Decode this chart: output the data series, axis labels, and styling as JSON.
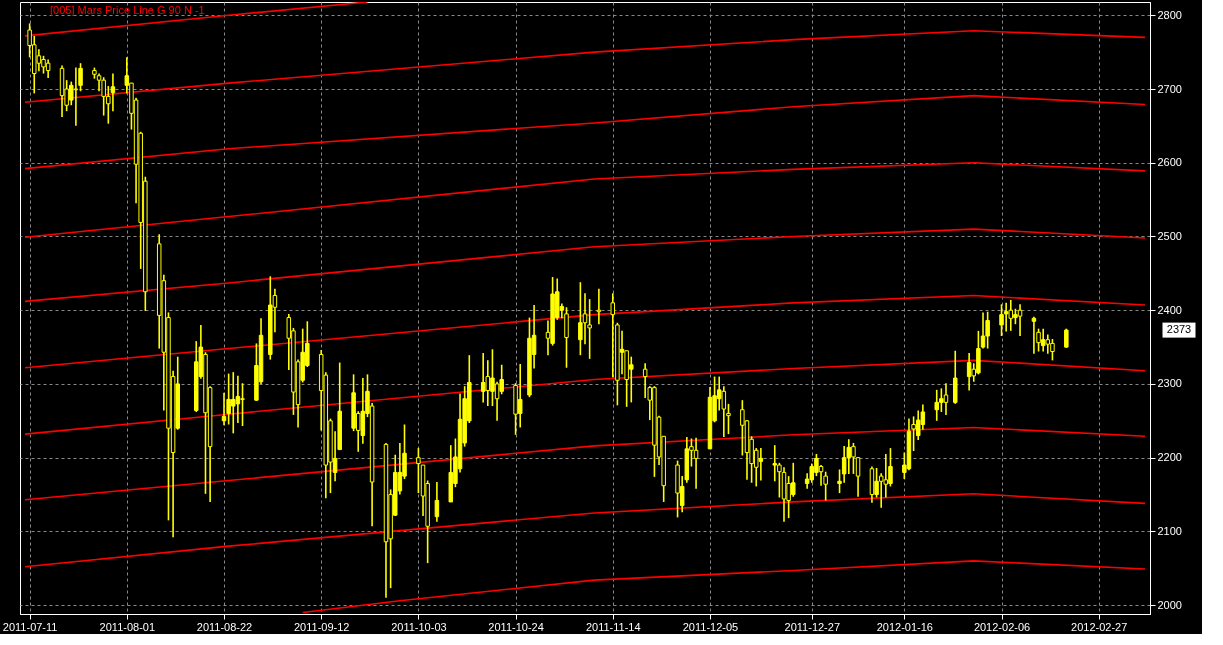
{
  "chart_data": {
    "type": "candlestick",
    "annotations": [
      "[005] Mars Price Line G 90 N -1",
      "2373"
    ],
    "xlim": [
      "2011-07-10",
      "2012-03-08"
    ],
    "xticks": [
      "2011-07-11",
      "2011-08-01",
      "2011-08-22",
      "2011-09-12",
      "2011-10-03",
      "2011-10-24",
      "2011-11-14",
      "2011-12-05",
      "2011-12-27",
      "2012-01-16",
      "2012-02-06",
      "2012-02-27"
    ],
    "ylim": [
      1988,
      2818
    ],
    "yticks": [
      2000,
      2100,
      2200,
      2300,
      2400,
      2500,
      2600,
      2700,
      2800
    ],
    "grid": true,
    "x": [
      "2011-07-11",
      "2011-07-12",
      "2011-07-13",
      "2011-07-14",
      "2011-07-15",
      "2011-07-18",
      "2011-07-19",
      "2011-07-20",
      "2011-07-21",
      "2011-07-22",
      "2011-07-25",
      "2011-07-26",
      "2011-07-27",
      "2011-07-28",
      "2011-07-29",
      "2011-08-01",
      "2011-08-02",
      "2011-08-03",
      "2011-08-04",
      "2011-08-05",
      "2011-08-08",
      "2011-08-09",
      "2011-08-10",
      "2011-08-11",
      "2011-08-12",
      "2011-08-16",
      "2011-08-17",
      "2011-08-18",
      "2011-08-19",
      "2011-08-22",
      "2011-08-23",
      "2011-08-24",
      "2011-08-25",
      "2011-08-26",
      "2011-08-29",
      "2011-08-30",
      "2011-09-01",
      "2011-09-02",
      "2011-09-05",
      "2011-09-06",
      "2011-09-07",
      "2011-09-08",
      "2011-09-09",
      "2011-09-12",
      "2011-09-13",
      "2011-09-14",
      "2011-09-15",
      "2011-09-16",
      "2011-09-19",
      "2011-09-20",
      "2011-09-21",
      "2011-09-22",
      "2011-09-23",
      "2011-09-26",
      "2011-09-27",
      "2011-09-28",
      "2011-09-29",
      "2011-09-30",
      "2011-10-03",
      "2011-10-04",
      "2011-10-05",
      "2011-10-07",
      "2011-10-10",
      "2011-10-11",
      "2011-10-12",
      "2011-10-13",
      "2011-10-14",
      "2011-10-17",
      "2011-10-18",
      "2011-10-19",
      "2011-10-20",
      "2011-10-21",
      "2011-10-24",
      "2011-10-25",
      "2011-10-27",
      "2011-10-28",
      "2011-10-31",
      "2011-11-01",
      "2011-11-02",
      "2011-11-03",
      "2011-11-04",
      "2011-11-07",
      "2011-11-08",
      "2011-11-09",
      "2011-11-11",
      "2011-11-14",
      "2011-11-15",
      "2011-11-16",
      "2011-11-17",
      "2011-11-18",
      "2011-11-21",
      "2011-11-22",
      "2011-11-23",
      "2011-11-24",
      "2011-11-25",
      "2011-11-28",
      "2011-11-29",
      "2011-11-30",
      "2011-12-01",
      "2011-12-02",
      "2011-12-05",
      "2011-12-06",
      "2011-12-07",
      "2011-12-08",
      "2011-12-09",
      "2011-12-12",
      "2011-12-13",
      "2011-12-14",
      "2011-12-15",
      "2011-12-16",
      "2011-12-19",
      "2011-12-20",
      "2011-12-21",
      "2011-12-22",
      "2011-12-23",
      "2011-12-26",
      "2011-12-27",
      "2011-12-28",
      "2011-12-29",
      "2011-12-30",
      "2012-01-02",
      "2012-01-03",
      "2012-01-04",
      "2012-01-05",
      "2012-01-06",
      "2012-01-09",
      "2012-01-10",
      "2012-01-11",
      "2012-01-12",
      "2012-01-13",
      "2012-01-16",
      "2012-01-17",
      "2012-01-18",
      "2012-01-19",
      "2012-01-20",
      "2012-01-23",
      "2012-01-24",
      "2012-01-25",
      "2012-01-27",
      "2012-01-30",
      "2012-01-31",
      "2012-02-01",
      "2012-02-02",
      "2012-02-03",
      "2012-02-06",
      "2012-02-07",
      "2012-02-08",
      "2012-02-09",
      "2012-02-10",
      "2012-02-13",
      "2012-02-14",
      "2012-02-15",
      "2012-02-16",
      "2012-02-17",
      "2012-02-20"
    ],
    "series": [
      {
        "type": "line",
        "color": "#ff0000",
        "x": [
          "2011-07-10",
          "2011-08-23",
          "2011-09-22"
        ],
        "values": [
          2772,
          2800,
          2818
        ]
      },
      {
        "type": "line",
        "color": "#ff0000",
        "x": [
          "2011-07-10",
          "2011-08-23",
          "2011-11-10",
          "2011-12-23",
          "2012-01-31",
          "2012-03-08"
        ],
        "values": [
          2682,
          2708,
          2750,
          2767,
          2779,
          2770
        ]
      },
      {
        "type": "line",
        "color": "#ff0000",
        "x": [
          "2011-07-10",
          "2011-08-23",
          "2011-11-10",
          "2011-12-23",
          "2012-01-31",
          "2012-03-08"
        ],
        "values": [
          2592,
          2619,
          2654,
          2676,
          2691,
          2679
        ]
      },
      {
        "type": "line",
        "color": "#ff0000",
        "x": [
          "2011-07-10",
          "2011-08-23",
          "2011-11-10",
          "2011-12-23",
          "2012-01-31",
          "2012-03-08"
        ],
        "values": [
          2499,
          2527,
          2578,
          2591,
          2600,
          2589
        ]
      },
      {
        "type": "line",
        "color": "#ff0000",
        "x": [
          "2011-07-10",
          "2011-08-23",
          "2011-11-10",
          "2011-12-23",
          "2012-01-31",
          "2012-03-08"
        ],
        "values": [
          2412,
          2437,
          2486,
          2500,
          2510,
          2498
        ]
      },
      {
        "type": "line",
        "color": "#ff0000",
        "x": [
          "2011-07-10",
          "2011-08-23",
          "2011-11-10",
          "2011-12-23",
          "2012-01-31",
          "2012-03-08"
        ],
        "values": [
          2322,
          2348,
          2394,
          2410,
          2420,
          2407
        ]
      },
      {
        "type": "line",
        "color": "#ff0000",
        "x": [
          "2011-07-10",
          "2011-08-23",
          "2011-11-10",
          "2011-12-23",
          "2012-01-31",
          "2012-03-08"
        ],
        "values": [
          2232,
          2259,
          2306,
          2321,
          2332,
          2318
        ]
      },
      {
        "type": "line",
        "color": "#ff0000",
        "x": [
          "2011-07-10",
          "2011-08-23",
          "2011-11-10",
          "2011-12-23",
          "2012-01-31",
          "2012-03-08"
        ],
        "values": [
          2143,
          2169,
          2216,
          2231,
          2241,
          2229
        ]
      },
      {
        "type": "line",
        "color": "#ff0000",
        "x": [
          "2011-07-10",
          "2011-08-23",
          "2011-11-10",
          "2011-12-23",
          "2012-01-31",
          "2012-03-08"
        ],
        "values": [
          2052,
          2080,
          2125,
          2140,
          2151,
          2138
        ]
      },
      {
        "type": "line",
        "color": "#ff0000",
        "x": [
          "2011-09-08",
          "2011-09-29",
          "2011-11-10",
          "2011-12-23",
          "2012-01-31",
          "2012-03-08"
        ],
        "values": [
          1990,
          2006,
          2034,
          2047,
          2060,
          2049
        ]
      },
      {
        "color": "#ffff00",
        "ohlc": [
          [
            2780,
            2789,
            2743,
            2759
          ],
          [
            2760,
            2772,
            2694,
            2721
          ],
          [
            2745,
            2754,
            2724,
            2735
          ],
          [
            2740,
            2745,
            2721,
            2730
          ],
          [
            2735,
            2740,
            2715,
            2725
          ],
          [
            2728,
            2732,
            2662,
            2691
          ],
          [
            2700,
            2712,
            2670,
            2678
          ],
          [
            2685,
            2710,
            2678,
            2705
          ],
          [
            2700,
            2729,
            2650,
            2699
          ],
          [
            2705,
            2735,
            2697,
            2728
          ],
          [
            2725,
            2729,
            2714,
            2720
          ],
          [
            2718,
            2721,
            2697,
            2712
          ],
          [
            2712,
            2716,
            2664,
            2690
          ],
          [
            2690,
            2704,
            2653,
            2680
          ],
          [
            2695,
            2721,
            2670,
            2703
          ],
          [
            2705,
            2743,
            2694,
            2718
          ],
          [
            2708,
            2708,
            2645,
            2667
          ],
          [
            2685,
            2688,
            2545,
            2598
          ],
          [
            2640,
            2642,
            2456,
            2519
          ],
          [
            2575,
            2581,
            2399,
            2425
          ],
          [
            2490,
            2503,
            2348,
            2393
          ],
          [
            2440,
            2448,
            2264,
            2343
          ],
          [
            2390,
            2397,
            2115,
            2240
          ],
          [
            2310,
            2318,
            2092,
            2207
          ],
          [
            2240,
            2337,
            2238,
            2300
          ],
          [
            2264,
            2358,
            2262,
            2330
          ],
          [
            2310,
            2380,
            2307,
            2350
          ],
          [
            2340,
            2343,
            2151,
            2261
          ],
          [
            2295,
            2297,
            2140,
            2215
          ],
          [
            2250,
            2288,
            2244,
            2256
          ],
          [
            2260,
            2314,
            2245,
            2279
          ],
          [
            2270,
            2316,
            2233,
            2279
          ],
          [
            2273,
            2311,
            2247,
            2283
          ],
          [
            2280,
            2301,
            2243,
            2279
          ],
          [
            2278,
            2355,
            2277,
            2325
          ],
          [
            2303,
            2389,
            2300,
            2366
          ],
          [
            2340,
            2446,
            2333,
            2407
          ],
          [
            2420,
            2429,
            2370,
            2404
          ],
          [
            2390,
            2395,
            2319,
            2362
          ],
          [
            2372,
            2376,
            2258,
            2289
          ],
          [
            2330,
            2333,
            2241,
            2272
          ],
          [
            2305,
            2375,
            2302,
            2343
          ],
          [
            2325,
            2385,
            2323,
            2355
          ],
          [
            2340,
            2346,
            2237,
            2291
          ],
          [
            2312,
            2316,
            2145,
            2190
          ],
          [
            2250,
            2253,
            2152,
            2194
          ],
          [
            2180,
            2236,
            2168,
            2199
          ],
          [
            2211,
            2329,
            2211,
            2263
          ],
          [
            2240,
            2313,
            2236,
            2288
          ],
          [
            2260,
            2263,
            2208,
            2237
          ],
          [
            2230,
            2308,
            2219,
            2263
          ],
          [
            2260,
            2313,
            2255,
            2290
          ],
          [
            2270,
            2274,
            2107,
            2167
          ],
          [
            2218,
            2220,
            2010,
            2086
          ],
          [
            2150,
            2157,
            2023,
            2090
          ],
          [
            2122,
            2204,
            2121,
            2180
          ],
          [
            2155,
            2220,
            2150,
            2180
          ],
          [
            2175,
            2245,
            2171,
            2206
          ],
          [
            2200,
            2213,
            2152,
            2192
          ],
          [
            2190,
            2190,
            2121,
            2148
          ],
          [
            2165,
            2169,
            2057,
            2107
          ],
          [
            2120,
            2167,
            2113,
            2142
          ],
          [
            2140,
            2217,
            2140,
            2180
          ],
          [
            2165,
            2226,
            2160,
            2201
          ],
          [
            2185,
            2287,
            2180,
            2252
          ],
          [
            2220,
            2297,
            2215,
            2280
          ],
          [
            2250,
            2339,
            2247,
            2302
          ],
          [
            2290,
            2342,
            2275,
            2302
          ],
          [
            2310,
            2332,
            2270,
            2291
          ],
          [
            2290,
            2347,
            2270,
            2308
          ],
          [
            2300,
            2303,
            2250,
            2280
          ],
          [
            2290,
            2326,
            2286,
            2306
          ],
          [
            2298,
            2301,
            2231,
            2259
          ],
          [
            2260,
            2327,
            2241,
            2279
          ],
          [
            2285,
            2390,
            2282,
            2362
          ],
          [
            2340,
            2407,
            2321,
            2366
          ],
          [
            2370,
            2386,
            2339,
            2362
          ],
          [
            2355,
            2445,
            2352,
            2422
          ],
          [
            2390,
            2443,
            2387,
            2425
          ],
          [
            2400,
            2409,
            2389,
            2405
          ],
          [
            2395,
            2404,
            2322,
            2363
          ],
          [
            2360,
            2438,
            2339,
            2383
          ],
          [
            2395,
            2423,
            2354,
            2383
          ],
          [
            2380,
            2415,
            2334,
            2376
          ],
          [
            2400,
            2429,
            2381,
            2398
          ],
          [
            2410,
            2423,
            2309,
            2394
          ],
          [
            2380,
            2383,
            2271,
            2305
          ],
          [
            2343,
            2372,
            2313,
            2347
          ],
          [
            2345,
            2345,
            2269,
            2306
          ],
          [
            2320,
            2337,
            2275,
            2326
          ],
          [
            2320,
            2328,
            2281,
            2310
          ],
          [
            2295,
            2297,
            2251,
            2278
          ],
          [
            2295,
            2297,
            2174,
            2217
          ],
          [
            2255,
            2257,
            2190,
            2201
          ],
          [
            2229,
            2229,
            2140,
            2162
          ],
          [
            2190,
            2196,
            2119,
            2152
          ],
          [
            2135,
            2175,
            2126,
            2161
          ],
          [
            2170,
            2228,
            2166,
            2212
          ],
          [
            2215,
            2226,
            2188,
            2210
          ],
          [
            2210,
            2227,
            2158,
            2199
          ],
          [
            2212,
            2296,
            2212,
            2282
          ],
          [
            2250,
            2310,
            2248,
            2284
          ],
          [
            2280,
            2310,
            2264,
            2292
          ],
          [
            2290,
            2297,
            2228,
            2266
          ],
          [
            2260,
            2273,
            2232,
            2257
          ],
          [
            2265,
            2278,
            2203,
            2244
          ],
          [
            2250,
            2251,
            2170,
            2207
          ],
          [
            2225,
            2229,
            2166,
            2192
          ],
          [
            2210,
            2213,
            2161,
            2187
          ],
          [
            2195,
            2213,
            2169,
            2199
          ],
          [
            2190,
            2217,
            2168,
            2192
          ],
          [
            2190,
            2193,
            2146,
            2181
          ],
          [
            2180,
            2187,
            2113,
            2144
          ],
          [
            2165,
            2175,
            2118,
            2142
          ],
          [
            2150,
            2193,
            2147,
            2166
          ],
          [
            2165,
            2179,
            2158,
            2171
          ],
          [
            2170,
            2192,
            2166,
            2188
          ],
          [
            2180,
            2205,
            2175,
            2199
          ],
          [
            2188,
            2190,
            2162,
            2181
          ],
          [
            2175,
            2181,
            2142,
            2164
          ],
          [
            2165,
            2184,
            2152,
            2168
          ],
          [
            2178,
            2216,
            2166,
            2200
          ],
          [
            2200,
            2225,
            2178,
            2214
          ],
          [
            2215,
            2220,
            2178,
            2201
          ],
          [
            2200,
            2201,
            2147,
            2175
          ],
          [
            2185,
            2188,
            2139,
            2150
          ],
          [
            2150,
            2186,
            2146,
            2168
          ],
          [
            2175,
            2179,
            2132,
            2168
          ],
          [
            2170,
            2205,
            2146,
            2164
          ],
          [
            2165,
            2213,
            2161,
            2188
          ],
          [
            2180,
            2207,
            2171,
            2190
          ],
          [
            2185,
            2253,
            2183,
            2236
          ],
          [
            2245,
            2256,
            2209,
            2239
          ],
          [
            2230,
            2264,
            2224,
            2251
          ],
          [
            2245,
            2272,
            2238,
            2262
          ],
          [
            2265,
            2292,
            2250,
            2275
          ],
          [
            2275,
            2294,
            2262,
            2280
          ],
          [
            2285,
            2301,
            2258,
            2275
          ],
          [
            2275,
            2345,
            2273,
            2308
          ],
          [
            2310,
            2342,
            2291,
            2329
          ],
          [
            2320,
            2328,
            2303,
            2311
          ],
          [
            2315,
            2372,
            2313,
            2348
          ],
          [
            2350,
            2397,
            2348,
            2365
          ],
          [
            2365,
            2398,
            2348,
            2386
          ],
          [
            2380,
            2408,
            2365,
            2394
          ],
          [
            2395,
            2410,
            2371,
            2398
          ],
          [
            2400,
            2414,
            2372,
            2389
          ],
          [
            2390,
            2402,
            2381,
            2394
          ],
          [
            2400,
            2408,
            2365,
            2392
          ],
          [
            2385,
            2391,
            2341,
            2389
          ],
          [
            2370,
            2375,
            2344,
            2356
          ],
          [
            2352,
            2375,
            2344,
            2360
          ],
          [
            2360,
            2367,
            2341,
            2354
          ],
          [
            2355,
            2361,
            2332,
            2344
          ],
          [
            2350,
            2375,
            2349,
            2373
          ]
        ]
      }
    ]
  }
}
